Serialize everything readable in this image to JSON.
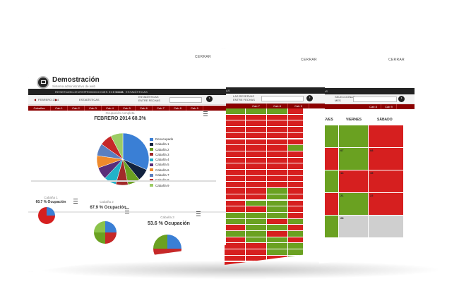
{
  "colors": {
    "red": "#d61f1f",
    "green": "#6aa121",
    "gray": "#cfcfcf",
    "dark_red": "#8b0000"
  },
  "front": {
    "logout": "CERRAR",
    "app_title": "Demostración",
    "app_subtitle": "Sistema administrativo de web",
    "nav": [
      "RESERVAS",
      "CLIENTES",
      "PROMOCIONES EXEXCOS",
      "CAJA",
      "ESTADÍSTICAS"
    ],
    "toolbar": {
      "month": "FEBRERO 2014",
      "label": "ESTADÍSTICAS",
      "filter_line1": "ESTADÍSTICAS",
      "filter_line2": "ENTRE FECHAS"
    },
    "cabins": [
      "Cabañas",
      "Cab 1",
      "Cab 2",
      "Cab 3",
      "Cab 4",
      "Cab 5",
      "Cab 6",
      "Cab 7",
      "Cab 8",
      "Cab 9"
    ],
    "main_chart": {
      "subtitle": "Ocupación completa",
      "title": "FEBRERO 2014 68.3%"
    },
    "small_charts": [
      {
        "title": "Cabaña 1",
        "value": "60.7 % Ocupación"
      },
      {
        "title": "Cabaña 2",
        "value": "67.9 % Ocupación"
      },
      {
        "title": "Cabaña 3",
        "value": "53.6 % Ocupación"
      }
    ]
  },
  "chart_data": {
    "type": "pie",
    "title": "FEBRERO 2014 68.3%",
    "subtitle": "Ocupación completa",
    "legend_position": "right",
    "slices": [
      {
        "label": "Desocupado",
        "value": 31.7,
        "color": "#3a7fd5"
      },
      {
        "label": "Cabaña 1",
        "value": 7.5,
        "color": "#12233f"
      },
      {
        "label": "Cabaña 2",
        "value": 7.6,
        "color": "#6aa121"
      },
      {
        "label": "Cabaña 3",
        "value": 7.6,
        "color": "#a12a2a"
      },
      {
        "label": "Cabaña 4",
        "value": 7.6,
        "color": "#22b2c9"
      },
      {
        "label": "Cabaña 5",
        "value": 7.6,
        "color": "#5a2e7a"
      },
      {
        "label": "Cabaña 6",
        "value": 7.6,
        "color": "#ef8a2c"
      },
      {
        "label": "Cabaña 7",
        "value": 7.6,
        "color": "#5b7fbf"
      },
      {
        "label": "Cabaña 8",
        "value": 7.6,
        "color": "#c62828"
      },
      {
        "label": "Cabaña 9",
        "value": 7.6,
        "color": "#9ccc65"
      }
    ]
  },
  "mid": {
    "logout": "CERRAR",
    "nav_tail": "AS",
    "toolbar": {
      "line1": "LAS RESERVAS",
      "line2": "ENTRE FECHAS"
    },
    "cabins": [
      "Cab 7",
      "Cab 8",
      "Cab 9"
    ],
    "grid_rows": [
      "gggr",
      "rrrr",
      "rrrr",
      "rrrr",
      "rrrr",
      "rrrr",
      "rrrg",
      "rrrr",
      "rrrr",
      "rrrr",
      "rrrr",
      "rrrr",
      "rrrr",
      "rrgr",
      "rrgr",
      "rggr",
      "rrgr",
      "gggr",
      "ggrg",
      "rggr",
      "ggrg",
      "rggr",
      "rrgg",
      "rrgg",
      "rrrg",
      "rrrg"
    ]
  },
  "back": {
    "logout": "CERRAR",
    "nav_tail": "ICAS",
    "toolbar": {
      "line1": "SELECCIONAR",
      "line2": "MES"
    },
    "cabins": [
      "Cab 8",
      "Cab 9"
    ],
    "days": [
      "JUEVES",
      "VIERNES",
      "SÁBADO"
    ],
    "calendar": [
      [
        {
          "c": "g",
          "n": "",
          "t": ""
        },
        {
          "c": "g",
          "n": "",
          "t": ""
        },
        {
          "c": "r",
          "n": "",
          "t": ""
        }
      ],
      [
        {
          "c": "r",
          "n": "",
          "t": ""
        },
        {
          "c": "g",
          "n": "07",
          "t": ""
        },
        {
          "c": "r",
          "n": "08",
          "t": ""
        }
      ],
      [
        {
          "c": "g",
          "n": "",
          "t": ""
        },
        {
          "c": "r",
          "n": "14",
          "t": ""
        },
        {
          "c": "r",
          "n": "15",
          "t": ""
        }
      ],
      [
        {
          "c": "r",
          "n": "",
          "t": ""
        },
        {
          "c": "g",
          "n": "21",
          "t": ""
        },
        {
          "c": "r",
          "n": "22",
          "t": ""
        }
      ],
      [
        {
          "c": "g",
          "n": "",
          "t": ""
        },
        {
          "c": "y",
          "n": "28",
          "t": ""
        },
        {
          "c": "y",
          "n": "",
          "t": ""
        }
      ]
    ]
  }
}
